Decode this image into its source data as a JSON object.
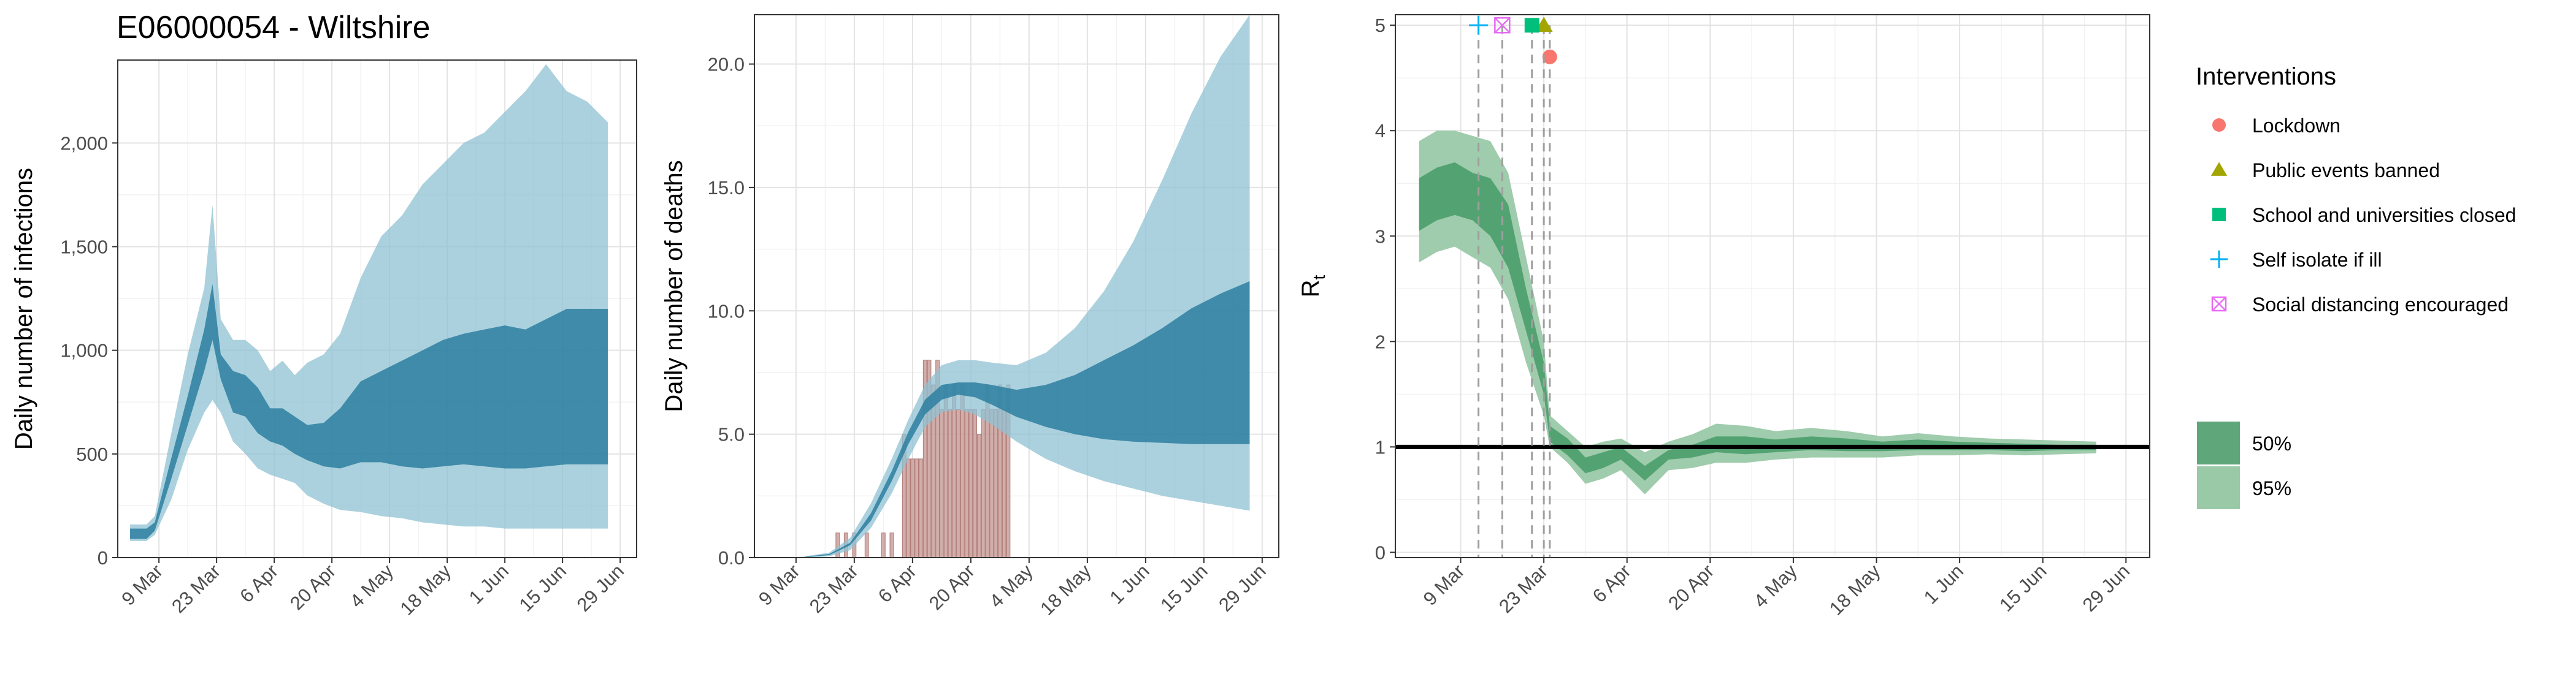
{
  "title": "E06000054 - Wiltshire",
  "chart_data": [
    {
      "type": "area",
      "ylabel": "Daily number of infections",
      "ylim": [
        0,
        2400
      ],
      "y_ticks": [
        0,
        500,
        1000,
        1500,
        2000
      ],
      "y_tick_labels": [
        "0",
        "500",
        "1,000",
        "1,500",
        "2,000"
      ],
      "x_ticks": [
        "2020-03-09",
        "2020-03-23",
        "2020-04-06",
        "2020-04-20",
        "2020-05-04",
        "2020-05-18",
        "2020-06-01",
        "2020-06-15",
        "2020-06-29"
      ],
      "x_tick_labels": [
        "9 Mar",
        "23 Mar",
        "6 Apr",
        "20 Apr",
        "4 May",
        "18 May",
        "1 Jun",
        "15 Jun",
        "29 Jun"
      ],
      "xlim": [
        "2020-02-28",
        "2020-07-03"
      ],
      "grid": true,
      "colors": {
        "band50": "#2b7fa0",
        "band95": "#8fc1d3"
      },
      "series": [
        {
          "x": [
            "2020-03-02",
            "2020-03-06",
            "2020-03-08",
            "2020-03-12",
            "2020-03-16",
            "2020-03-20",
            "2020-03-22",
            "2020-03-24",
            "2020-03-27",
            "2020-03-30",
            "2020-04-02",
            "2020-04-05",
            "2020-04-08",
            "2020-04-11",
            "2020-04-14",
            "2020-04-18",
            "2020-04-22",
            "2020-04-27",
            "2020-05-02",
            "2020-05-07",
            "2020-05-12",
            "2020-05-17",
            "2020-05-22",
            "2020-05-27",
            "2020-06-01",
            "2020-06-06",
            "2020-06-11",
            "2020-06-16",
            "2020-06-21",
            "2020-06-26"
          ],
          "lower95": [
            80,
            80,
            110,
            280,
            520,
            700,
            760,
            700,
            560,
            500,
            430,
            400,
            380,
            360,
            300,
            260,
            230,
            220,
            200,
            190,
            170,
            160,
            150,
            150,
            140,
            140,
            140,
            140,
            140,
            140
          ],
          "upper95": [
            160,
            160,
            200,
            600,
            980,
            1300,
            1700,
            1150,
            1050,
            1050,
            1000,
            900,
            950,
            880,
            940,
            980,
            1080,
            1350,
            1550,
            1650,
            1800,
            1900,
            2000,
            2050,
            2150,
            2250,
            2380,
            2250,
            2200,
            2100
          ],
          "lower50": [
            90,
            90,
            130,
            380,
            640,
            900,
            1050,
            860,
            700,
            680,
            600,
            560,
            540,
            500,
            470,
            440,
            430,
            460,
            460,
            440,
            430,
            440,
            450,
            440,
            430,
            430,
            440,
            450,
            450,
            450
          ],
          "upper50": [
            140,
            140,
            170,
            480,
            780,
            1100,
            1320,
            980,
            900,
            880,
            820,
            720,
            720,
            680,
            640,
            650,
            720,
            850,
            900,
            950,
            1000,
            1050,
            1080,
            1100,
            1120,
            1100,
            1150,
            1200,
            1200,
            1200
          ]
        }
      ],
      "bars": [
        {
          "x": "2020-03-23",
          "value": 2
        },
        {
          "x": "2020-03-25",
          "value": 2
        },
        {
          "x": "2020-04-01",
          "value": 2
        },
        {
          "x": "2020-04-04",
          "value": 2
        },
        {
          "x": "2020-04-09",
          "value": 2
        },
        {
          "x": "2020-04-13",
          "value": 2
        },
        {
          "x": "2020-04-16",
          "value": 2
        },
        {
          "x": "2020-04-20",
          "value": 2
        },
        {
          "x": "2020-04-24",
          "value": 2
        }
      ]
    },
    {
      "type": "area",
      "ylabel": "Daily number of deaths",
      "ylim": [
        0,
        22
      ],
      "y_ticks": [
        0,
        5,
        10,
        15,
        20
      ],
      "y_tick_labels": [
        "0.0",
        "5.0",
        "10.0",
        "15.0",
        "20.0"
      ],
      "x_ticks": [
        "2020-03-09",
        "2020-03-23",
        "2020-04-06",
        "2020-04-20",
        "2020-05-04",
        "2020-05-18",
        "2020-06-01",
        "2020-06-15",
        "2020-06-29"
      ],
      "x_tick_labels": [
        "9 Mar",
        "23 Mar",
        "6 Apr",
        "20 Apr",
        "4 May",
        "18 May",
        "1 Jun",
        "15 Jun",
        "29 Jun"
      ],
      "xlim": [
        "2020-02-28",
        "2020-07-03"
      ],
      "grid": true,
      "colors": {
        "band50": "#2b7fa0",
        "band95": "#8fc1d3",
        "bars": "#c9a09c"
      },
      "series": [
        {
          "x": [
            "2020-03-11",
            "2020-03-17",
            "2020-03-22",
            "2020-03-27",
            "2020-04-01",
            "2020-04-05",
            "2020-04-09",
            "2020-04-13",
            "2020-04-17",
            "2020-04-21",
            "2020-04-25",
            "2020-05-01",
            "2020-05-08",
            "2020-05-15",
            "2020-05-22",
            "2020-05-29",
            "2020-06-05",
            "2020-06-12",
            "2020-06-19",
            "2020-06-26"
          ],
          "lower95": [
            0,
            0.05,
            0.3,
            1.2,
            2.6,
            4.0,
            5.3,
            5.9,
            6.0,
            5.8,
            5.4,
            4.7,
            4.0,
            3.5,
            3.1,
            2.8,
            2.5,
            2.3,
            2.1,
            1.9
          ],
          "upper95": [
            0.05,
            0.2,
            0.8,
            2.2,
            4.0,
            5.6,
            7.0,
            7.8,
            8.0,
            8.0,
            7.9,
            7.8,
            8.3,
            9.3,
            10.8,
            12.8,
            15.3,
            18.0,
            20.3,
            22.0
          ],
          "lower50": [
            0.01,
            0.1,
            0.5,
            1.5,
            3.1,
            4.6,
            5.8,
            6.4,
            6.6,
            6.5,
            6.2,
            5.7,
            5.3,
            5.0,
            4.8,
            4.7,
            4.65,
            4.6,
            4.6,
            4.6
          ],
          "upper50": [
            0.03,
            0.15,
            0.6,
            1.8,
            3.5,
            5.1,
            6.4,
            7.0,
            7.1,
            7.1,
            7.0,
            6.8,
            7.0,
            7.4,
            8.0,
            8.6,
            9.3,
            10.1,
            10.7,
            11.2
          ]
        }
      ],
      "bars": [
        {
          "x": "2020-03-19",
          "value": 1
        },
        {
          "x": "2020-03-21",
          "value": 1
        },
        {
          "x": "2020-03-23",
          "value": 1
        },
        {
          "x": "2020-03-26",
          "value": 1
        },
        {
          "x": "2020-03-30",
          "value": 1
        },
        {
          "x": "2020-04-01",
          "value": 1
        },
        {
          "x": "2020-04-04",
          "value": 5
        },
        {
          "x": "2020-04-05",
          "value": 4
        },
        {
          "x": "2020-04-06",
          "value": 4
        },
        {
          "x": "2020-04-07",
          "value": 4
        },
        {
          "x": "2020-04-08",
          "value": 4
        },
        {
          "x": "2020-04-09",
          "value": 8
        },
        {
          "x": "2020-04-10",
          "value": 8
        },
        {
          "x": "2020-04-11",
          "value": 7
        },
        {
          "x": "2020-04-12",
          "value": 8
        },
        {
          "x": "2020-04-13",
          "value": 6
        },
        {
          "x": "2020-04-14",
          "value": 7
        },
        {
          "x": "2020-04-15",
          "value": 6
        },
        {
          "x": "2020-04-16",
          "value": 7
        },
        {
          "x": "2020-04-17",
          "value": 6
        },
        {
          "x": "2020-04-18",
          "value": 7
        },
        {
          "x": "2020-04-19",
          "value": 6
        },
        {
          "x": "2020-04-20",
          "value": 6
        },
        {
          "x": "2020-04-21",
          "value": 6
        },
        {
          "x": "2020-04-22",
          "value": 5
        },
        {
          "x": "2020-04-23",
          "value": 6
        },
        {
          "x": "2020-04-24",
          "value": 7
        },
        {
          "x": "2020-04-25",
          "value": 6
        },
        {
          "x": "2020-04-26",
          "value": 6
        },
        {
          "x": "2020-04-27",
          "value": 7
        },
        {
          "x": "2020-04-28",
          "value": 6
        },
        {
          "x": "2020-04-29",
          "value": 7
        }
      ]
    },
    {
      "type": "area",
      "ylabel": "R",
      "ylabel_subscript": "t",
      "ylim": [
        -0.05,
        5.1
      ],
      "y_ticks": [
        0,
        1,
        2,
        3,
        4,
        5
      ],
      "y_tick_labels": [
        "0",
        "1",
        "2",
        "3",
        "4",
        "5"
      ],
      "x_ticks": [
        "2020-03-09",
        "2020-03-23",
        "2020-04-06",
        "2020-04-20",
        "2020-05-04",
        "2020-05-18",
        "2020-06-01",
        "2020-06-15",
        "2020-06-29"
      ],
      "x_tick_labels": [
        "9 Mar",
        "23 Mar",
        "6 Apr",
        "20 Apr",
        "4 May",
        "18 May",
        "1 Jun",
        "15 Jun",
        "29 Jun"
      ],
      "xlim": [
        "2020-02-27",
        "2020-07-03"
      ],
      "grid": true,
      "reference_line": 1,
      "colors": {
        "band50": "#4a9e6b",
        "band95": "#9ac9a8",
        "reference": "#000000"
      },
      "series": [
        {
          "x": [
            "2020-03-02",
            "2020-03-05",
            "2020-03-08",
            "2020-03-11",
            "2020-03-14",
            "2020-03-17",
            "2020-03-20",
            "2020-03-23",
            "2020-03-24",
            "2020-03-27",
            "2020-03-30",
            "2020-04-02",
            "2020-04-05",
            "2020-04-09",
            "2020-04-13",
            "2020-04-17",
            "2020-04-21",
            "2020-04-26",
            "2020-05-01",
            "2020-05-07",
            "2020-05-13",
            "2020-05-19",
            "2020-05-25",
            "2020-05-31",
            "2020-06-06",
            "2020-06-12",
            "2020-06-18",
            "2020-06-24"
          ],
          "lower95": [
            2.75,
            2.85,
            2.9,
            2.8,
            2.7,
            2.4,
            1.8,
            1.3,
            1.0,
            0.85,
            0.65,
            0.7,
            0.78,
            0.55,
            0.78,
            0.8,
            0.85,
            0.85,
            0.88,
            0.9,
            0.9,
            0.9,
            0.92,
            0.92,
            0.93,
            0.92,
            0.93,
            0.94
          ],
          "upper95": [
            3.9,
            4.0,
            4.0,
            3.95,
            3.9,
            3.6,
            2.8,
            2.0,
            1.3,
            1.15,
            1.0,
            1.05,
            1.08,
            0.95,
            1.05,
            1.12,
            1.22,
            1.2,
            1.15,
            1.18,
            1.15,
            1.1,
            1.13,
            1.1,
            1.08,
            1.07,
            1.06,
            1.05
          ],
          "lower50": [
            3.05,
            3.15,
            3.2,
            3.15,
            3.0,
            2.7,
            2.1,
            1.5,
            1.05,
            0.92,
            0.75,
            0.8,
            0.88,
            0.68,
            0.88,
            0.9,
            0.95,
            0.93,
            0.95,
            0.97,
            0.96,
            0.96,
            0.97,
            0.97,
            0.97,
            0.96,
            0.97,
            0.97
          ],
          "upper50": [
            3.55,
            3.65,
            3.7,
            3.6,
            3.55,
            3.3,
            2.5,
            1.8,
            1.2,
            1.08,
            0.9,
            0.95,
            1.0,
            0.82,
            0.97,
            1.02,
            1.1,
            1.1,
            1.07,
            1.1,
            1.08,
            1.05,
            1.07,
            1.05,
            1.04,
            1.03,
            1.02,
            1.02
          ]
        }
      ],
      "interventions": [
        {
          "name": "Lockdown",
          "date": "2020-03-24",
          "y": 4.7,
          "color": "#f8766d",
          "marker": "circle"
        },
        {
          "name": "Public events banned",
          "date": "2020-03-23",
          "y": 5.0,
          "color": "#a3a500",
          "marker": "triangle"
        },
        {
          "name": "School and universities closed",
          "date": "2020-03-21",
          "y": 5.0,
          "color": "#00bf7d",
          "marker": "square"
        },
        {
          "name": "Self isolate if ill",
          "date": "2020-03-12",
          "y": 5.0,
          "color": "#00b0f6",
          "marker": "plus"
        },
        {
          "name": "Social distancing encouraged",
          "date": "2020-03-16",
          "y": 5.0,
          "color": "#e76bf3",
          "marker": "square-cross"
        }
      ],
      "legend": {
        "title": "Interventions",
        "placement": "right",
        "bands": [
          {
            "label": "50%",
            "color": "#5fa67a"
          },
          {
            "label": "95%",
            "color": "#9ac9a8"
          }
        ]
      }
    }
  ]
}
